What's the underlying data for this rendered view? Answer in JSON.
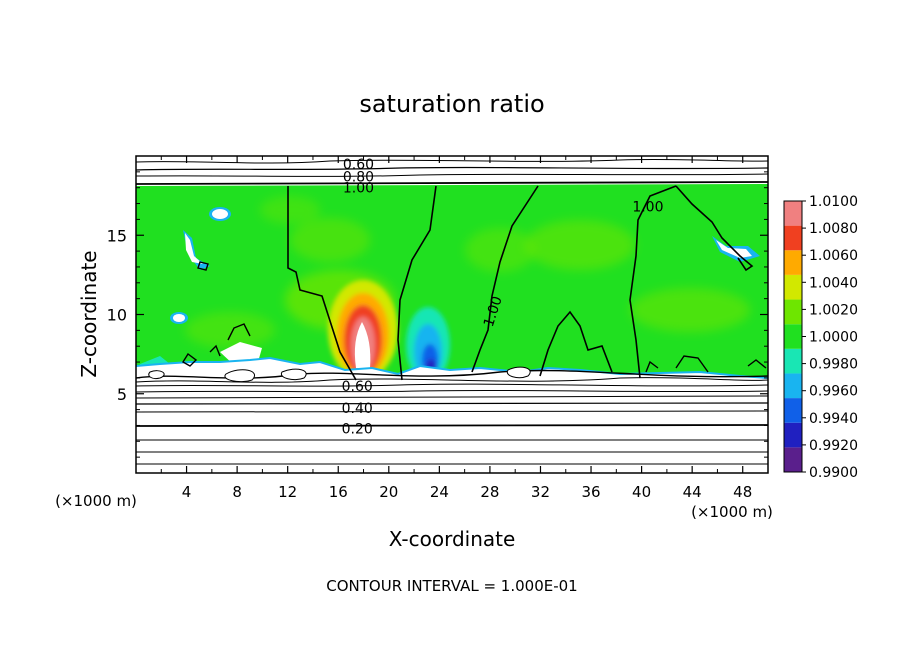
{
  "chart_data": {
    "type": "heatmap",
    "title": "saturation ratio",
    "xlabel": "X-coordinate",
    "ylabel": "Z-coordinate",
    "x_unit_left": "(×1000 m)",
    "x_unit_right": "(×1000 m)",
    "footer": "CONTOUR INTERVAL = 1.000E-01",
    "xlim": [
      0,
      50
    ],
    "ylim": [
      0,
      20
    ],
    "x_ticks": [
      4,
      8,
      12,
      16,
      20,
      24,
      28,
      32,
      36,
      40,
      44,
      48
    ],
    "x_tick_labels": [
      "4",
      "8",
      "12",
      "16",
      "20",
      "24",
      "28",
      "32",
      "36",
      "40",
      "44",
      "48"
    ],
    "y_ticks": [
      5,
      10,
      15
    ],
    "y_tick_labels": [
      "5",
      "10",
      "15"
    ],
    "colorbar": {
      "levels": [
        0.99,
        0.992,
        0.994,
        0.996,
        0.998,
        1.0,
        1.002,
        1.004,
        1.006,
        1.008,
        1.01
      ],
      "labels": [
        "0.9900",
        "0.9920",
        "0.9940",
        "0.9960",
        "0.9980",
        "1.0000",
        "1.0020",
        "1.0040",
        "1.0060",
        "1.0080",
        "1.0100"
      ],
      "colors": [
        "#5a1f8c",
        "#2020c0",
        "#1060e8",
        "#19b4f0",
        "#19e6b4",
        "#20e020",
        "#6ee600",
        "#d2e800",
        "#ffaa00",
        "#f04020",
        "#f08080"
      ]
    },
    "contour_labels": [
      {
        "text": "0.60",
        "x": 17.6,
        "y": 19.5
      },
      {
        "text": "0.80",
        "x": 17.6,
        "y": 18.7
      },
      {
        "text": "1.00",
        "x": 17.6,
        "y": 18.0
      },
      {
        "text": "1.00",
        "x": 40.5,
        "y": 16.8
      },
      {
        "text": "1.00",
        "x": 28.2,
        "y": 10.2
      },
      {
        "text": "0.60",
        "x": 17.5,
        "y": 5.5
      },
      {
        "text": "0.40",
        "x": 17.5,
        "y": 4.1
      },
      {
        "text": "0.20",
        "x": 17.5,
        "y": 2.8
      }
    ]
  }
}
